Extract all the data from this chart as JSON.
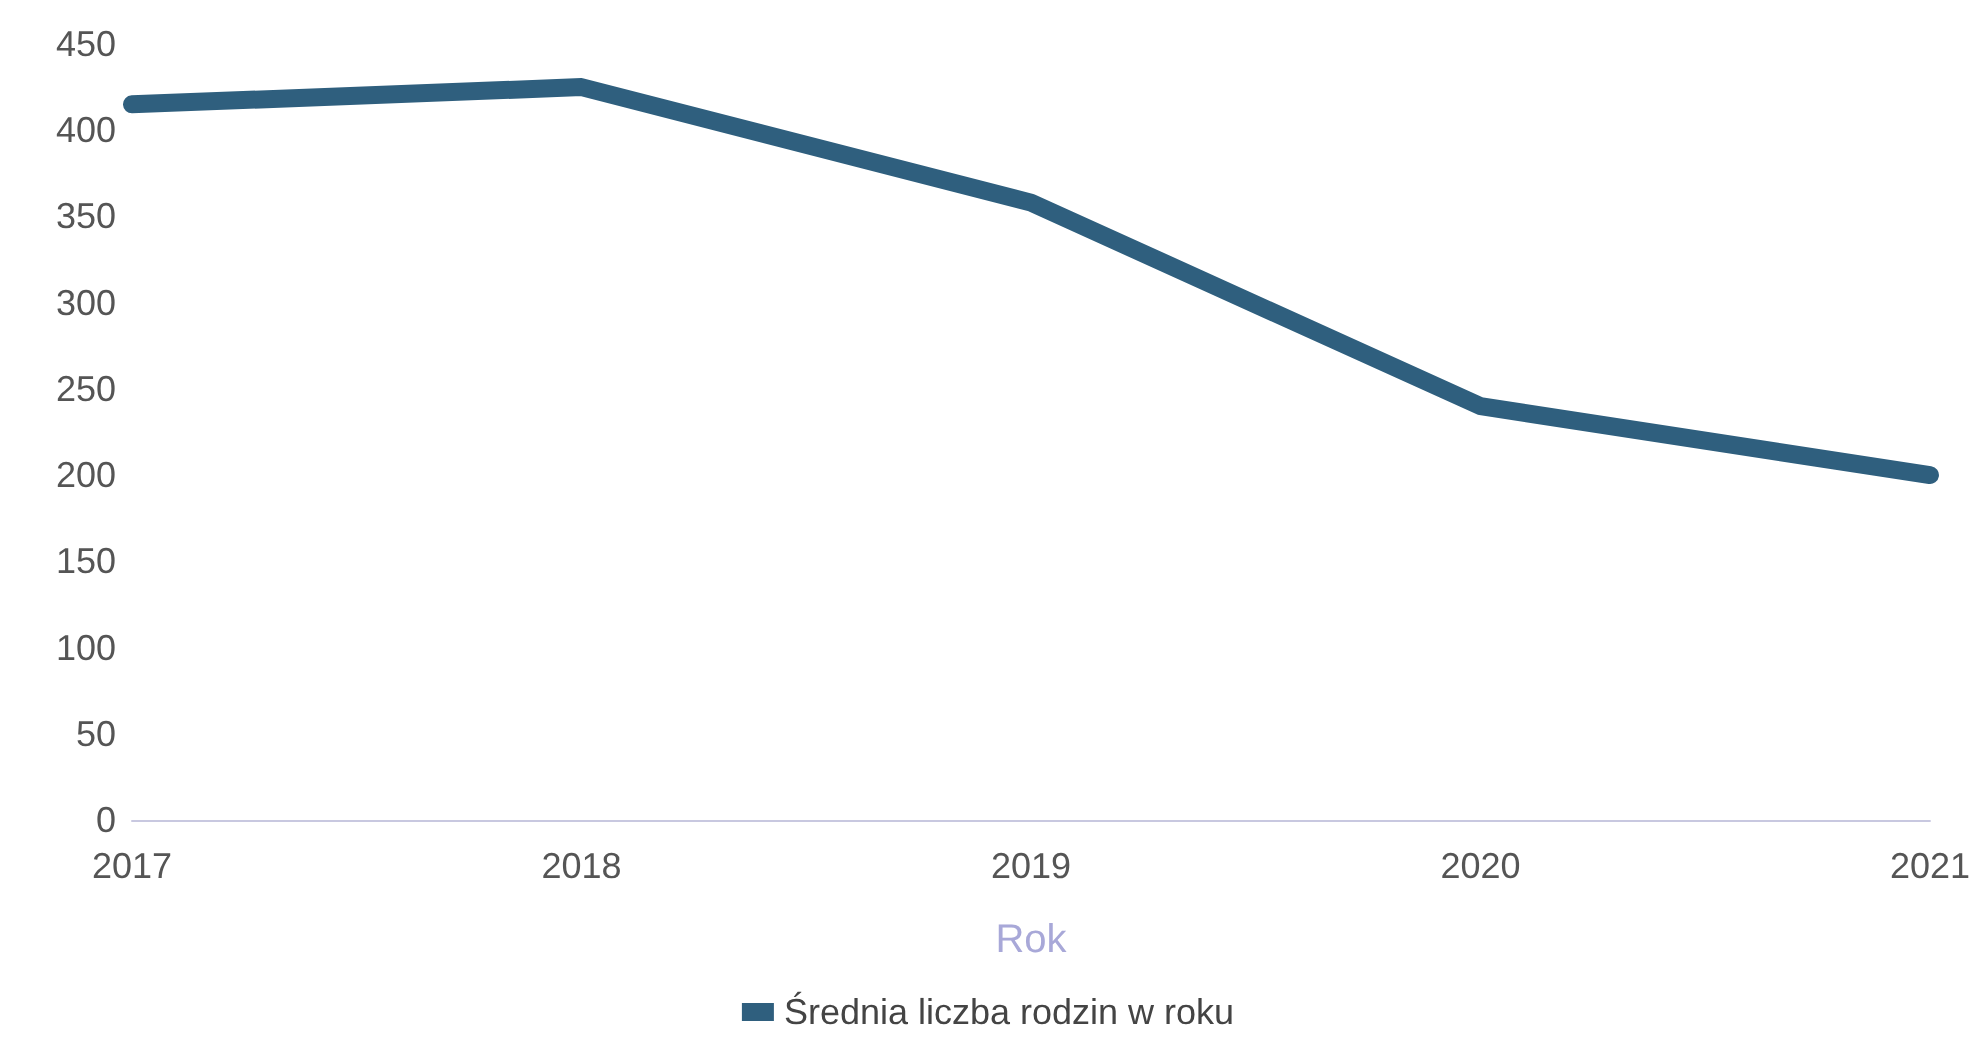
{
  "chart_data": {
    "type": "line",
    "xlabel": "Rok",
    "categories": [
      "2017",
      "2018",
      "2019",
      "2020",
      "2021"
    ],
    "series": [
      {
        "name": "Średnia liczba rodzin w roku",
        "color": "#2f5f7e",
        "values": [
          415,
          425,
          358,
          240,
          200
        ]
      }
    ],
    "ylim": [
      0,
      450
    ],
    "yticks": [
      0,
      50,
      100,
      150,
      200,
      250,
      300,
      350,
      400,
      450
    ],
    "grid": false,
    "legend": "bottom",
    "marker": "none",
    "line_style": "solid"
  }
}
